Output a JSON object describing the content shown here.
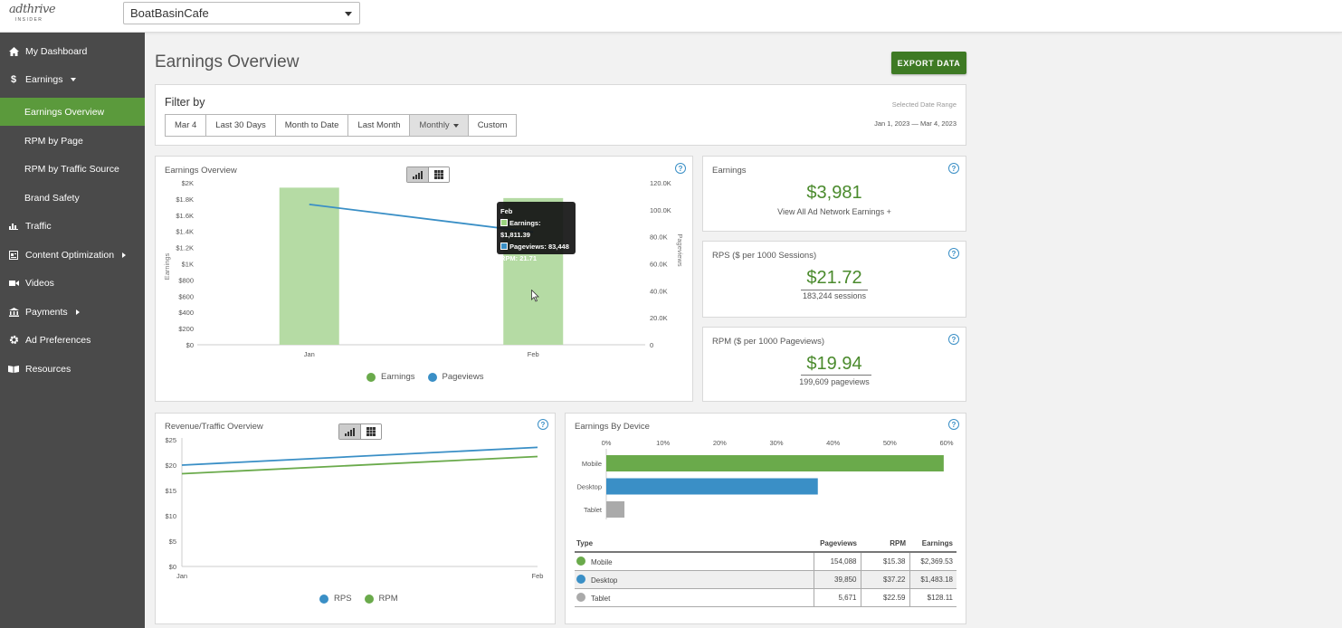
{
  "header": {
    "logo_top": "adthrive",
    "logo_bottom": "INSIDER",
    "site_selected": "BoatBasinCafe"
  },
  "sidebar": {
    "items": [
      {
        "label": "My Dashboard",
        "icon": "home-icon"
      },
      {
        "label": "Earnings",
        "icon": "dollar-icon",
        "expanded": true
      },
      {
        "label": "Earnings Overview",
        "active": true
      },
      {
        "label": "RPM by Page"
      },
      {
        "label": "RPM by Traffic Source"
      },
      {
        "label": "Brand Safety"
      },
      {
        "label": "Traffic",
        "icon": "bar-chart-icon"
      },
      {
        "label": "Content Optimization",
        "icon": "document-icon"
      },
      {
        "label": "Videos",
        "icon": "video-camera-icon"
      },
      {
        "label": "Payments",
        "icon": "bank-icon"
      },
      {
        "label": "Ad Preferences",
        "icon": "gear-icon"
      },
      {
        "label": "Resources",
        "icon": "book-icon"
      }
    ]
  },
  "main": {
    "title": "Earnings Overview",
    "export_label": "EXPORT DATA"
  },
  "filter": {
    "title": "Filter by",
    "buttons": [
      "Mar 4",
      "Last 30 Days",
      "Month to Date",
      "Last Month",
      "Monthly",
      "Custom"
    ],
    "selected": "Monthly",
    "range_label": "Selected Date Range",
    "range_value": "Jan 1, 2023 — Mar 4, 2023"
  },
  "colors": {
    "accent_green": "#5b9a3c",
    "earnings_green": "#6aaa4b",
    "bar_green": "#b5dba4",
    "pageviews_blue": "#3a8fc6",
    "tablet_gray": "#aaaaaa"
  },
  "earnings_chart": {
    "title": "Earnings Overview",
    "legend": [
      "Earnings",
      "Pageviews"
    ],
    "tooltip": {
      "title": "Feb",
      "earnings": "Earnings: $1,811.39",
      "pageviews": "Pageviews: 83,448",
      "rpm": "RPM: 21.71"
    }
  },
  "stats": {
    "earnings": {
      "title": "Earnings",
      "value": "$3,981",
      "sub": "View All Ad Network Earnings +"
    },
    "rps": {
      "title": "RPS ($ per 1000 Sessions)",
      "value": "$21.72",
      "sub": "183,244 sessions"
    },
    "rpm": {
      "title": "RPM ($ per 1000 Pageviews)",
      "value": "$19.94",
      "sub": "199,609 pageviews"
    }
  },
  "revenue_chart": {
    "title": "Revenue/Traffic Overview",
    "legend": [
      "RPS",
      "RPM"
    ]
  },
  "device_chart": {
    "title": "Earnings By Device",
    "table_headers": [
      "Type",
      "Pageviews",
      "RPM",
      "Earnings"
    ],
    "rows": [
      {
        "type": "Mobile",
        "pageviews": "154,088",
        "rpm": "$15.38",
        "earnings": "$2,369.53"
      },
      {
        "type": "Desktop",
        "pageviews": "39,850",
        "rpm": "$37.22",
        "earnings": "$1,483.18"
      },
      {
        "type": "Tablet",
        "pageviews": "5,671",
        "rpm": "$22.59",
        "earnings": "$128.11"
      }
    ]
  },
  "chart_data": [
    {
      "type": "bar",
      "title": "Earnings Overview",
      "categories": [
        "Jan",
        "Feb"
      ],
      "series": [
        {
          "name": "Earnings",
          "type": "bar",
          "axis": "left",
          "values": [
            1940,
            1811.39
          ]
        },
        {
          "name": "Pageviews",
          "type": "line",
          "axis": "right",
          "values": [
            104000,
            83448
          ]
        }
      ],
      "ylabel": "Earnings",
      "y2label": "Pageviews",
      "ylim": [
        0,
        2000
      ],
      "y2lim": [
        0,
        120000
      ],
      "yticks": [
        "$0",
        "$200",
        "$400",
        "$600",
        "$800",
        "$1K",
        "$1.2K",
        "$1.4K",
        "$1.6K",
        "$1.8K",
        "$2K"
      ],
      "y2ticks": [
        "0",
        "20.0K",
        "40.0K",
        "60.0K",
        "80.0K",
        "100.0K",
        "120.0K"
      ],
      "legend_position": "bottom"
    },
    {
      "type": "line",
      "title": "Revenue/Traffic Overview",
      "categories": [
        "Jan",
        "Feb"
      ],
      "series": [
        {
          "name": "RPS",
          "values": [
            20,
            23.5
          ]
        },
        {
          "name": "RPM",
          "values": [
            18.3,
            21.7
          ]
        }
      ],
      "ylim": [
        0,
        25
      ],
      "yticks": [
        "$0",
        "$5",
        "$10",
        "$15",
        "$20",
        "$25"
      ],
      "legend_position": "bottom"
    },
    {
      "type": "bar",
      "orientation": "horizontal",
      "title": "Earnings By Device",
      "categories": [
        "Mobile",
        "Desktop",
        "Tablet"
      ],
      "values": [
        59.5,
        37.3,
        3.2
      ],
      "xlim": [
        0,
        60
      ],
      "xticks": [
        "0%",
        "10%",
        "20%",
        "30%",
        "40%",
        "50%",
        "60%"
      ]
    }
  ]
}
